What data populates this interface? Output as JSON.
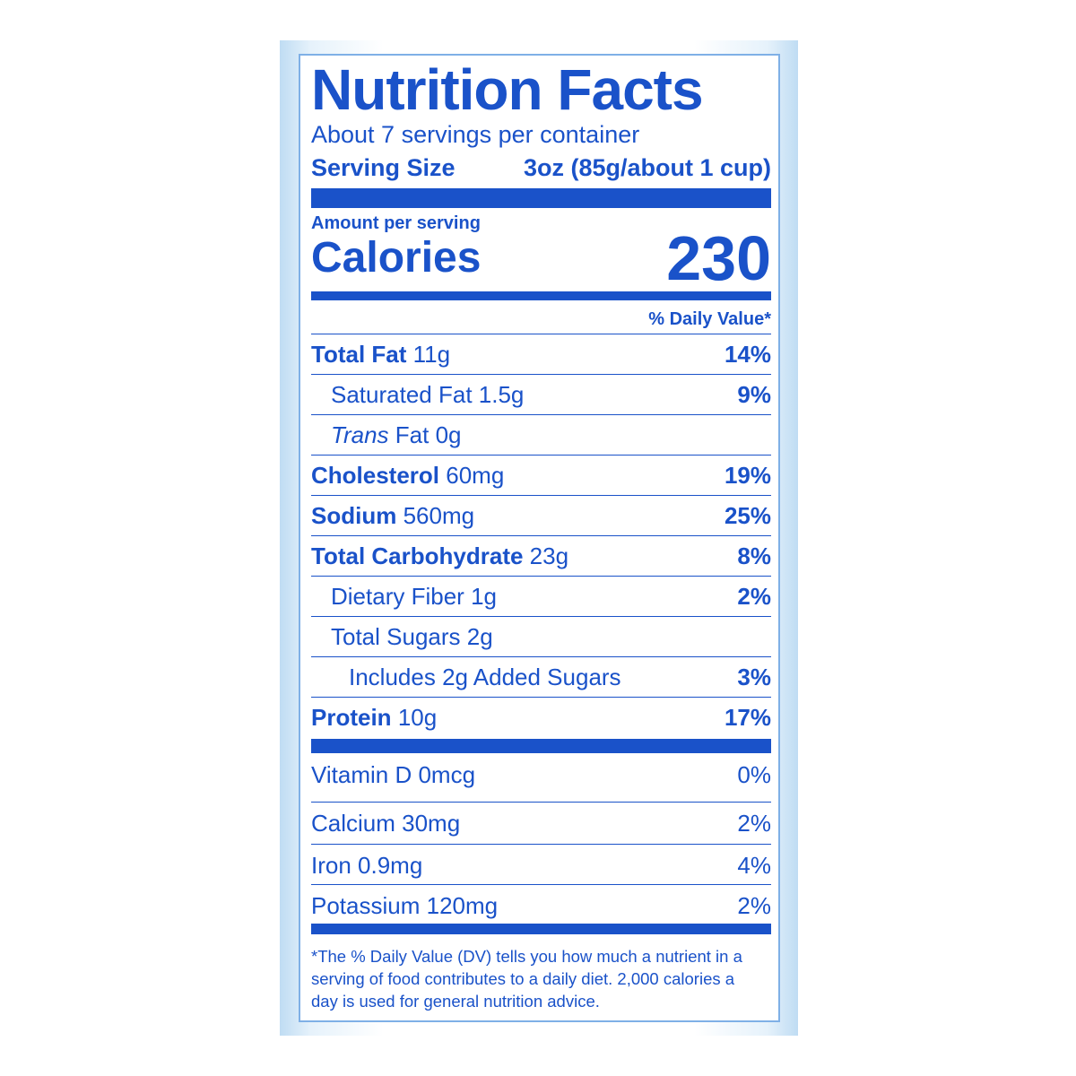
{
  "title": "Nutrition Facts",
  "servings_per_container": "About 7 servings per container",
  "serving_size": {
    "label": "Serving Size",
    "value": "3oz (85g/about 1 cup)"
  },
  "amount_per_serving": "Amount per serving",
  "calories": {
    "label": "Calories",
    "value": 230
  },
  "daily_value_header": "% Daily Value*",
  "nutrients": [
    {
      "name": "Total Fat",
      "amount": "11g",
      "daily_value": "14%"
    },
    {
      "name": "Saturated Fat",
      "amount": "1.5g",
      "daily_value": "9%"
    },
    {
      "name_italic": "Trans",
      "name": "Fat",
      "amount": "0g"
    },
    {
      "name": "Cholesterol",
      "amount": "60mg",
      "daily_value": "19%"
    },
    {
      "name": "Sodium",
      "amount": "560mg",
      "daily_value": "25%"
    },
    {
      "name": "Total Carbohydrate",
      "amount": "23g",
      "daily_value": "8%"
    },
    {
      "name": "Dietary Fiber",
      "amount": "1g",
      "daily_value": "2%"
    },
    {
      "name": "Total Sugars",
      "amount": "2g"
    },
    {
      "text": "Includes 2g Added Sugars",
      "daily_value": "3%"
    },
    {
      "name": "Protein",
      "amount": "10g",
      "daily_value": "17%"
    }
  ],
  "vitamins": [
    {
      "name": "Vitamin D 0mcg",
      "daily_value": "0%"
    },
    {
      "name": "Calcium 30mg",
      "daily_value": "2%"
    },
    {
      "name": "Iron 0.9mg",
      "daily_value": "4%"
    },
    {
      "name": "Potassium 120mg",
      "daily_value": "2%"
    }
  ],
  "footnote": "*The % Daily Value (DV) tells you how much a nutrient in a serving of food contributes to a daily diet. 2,000 calories a day is used for general nutrition advice."
}
